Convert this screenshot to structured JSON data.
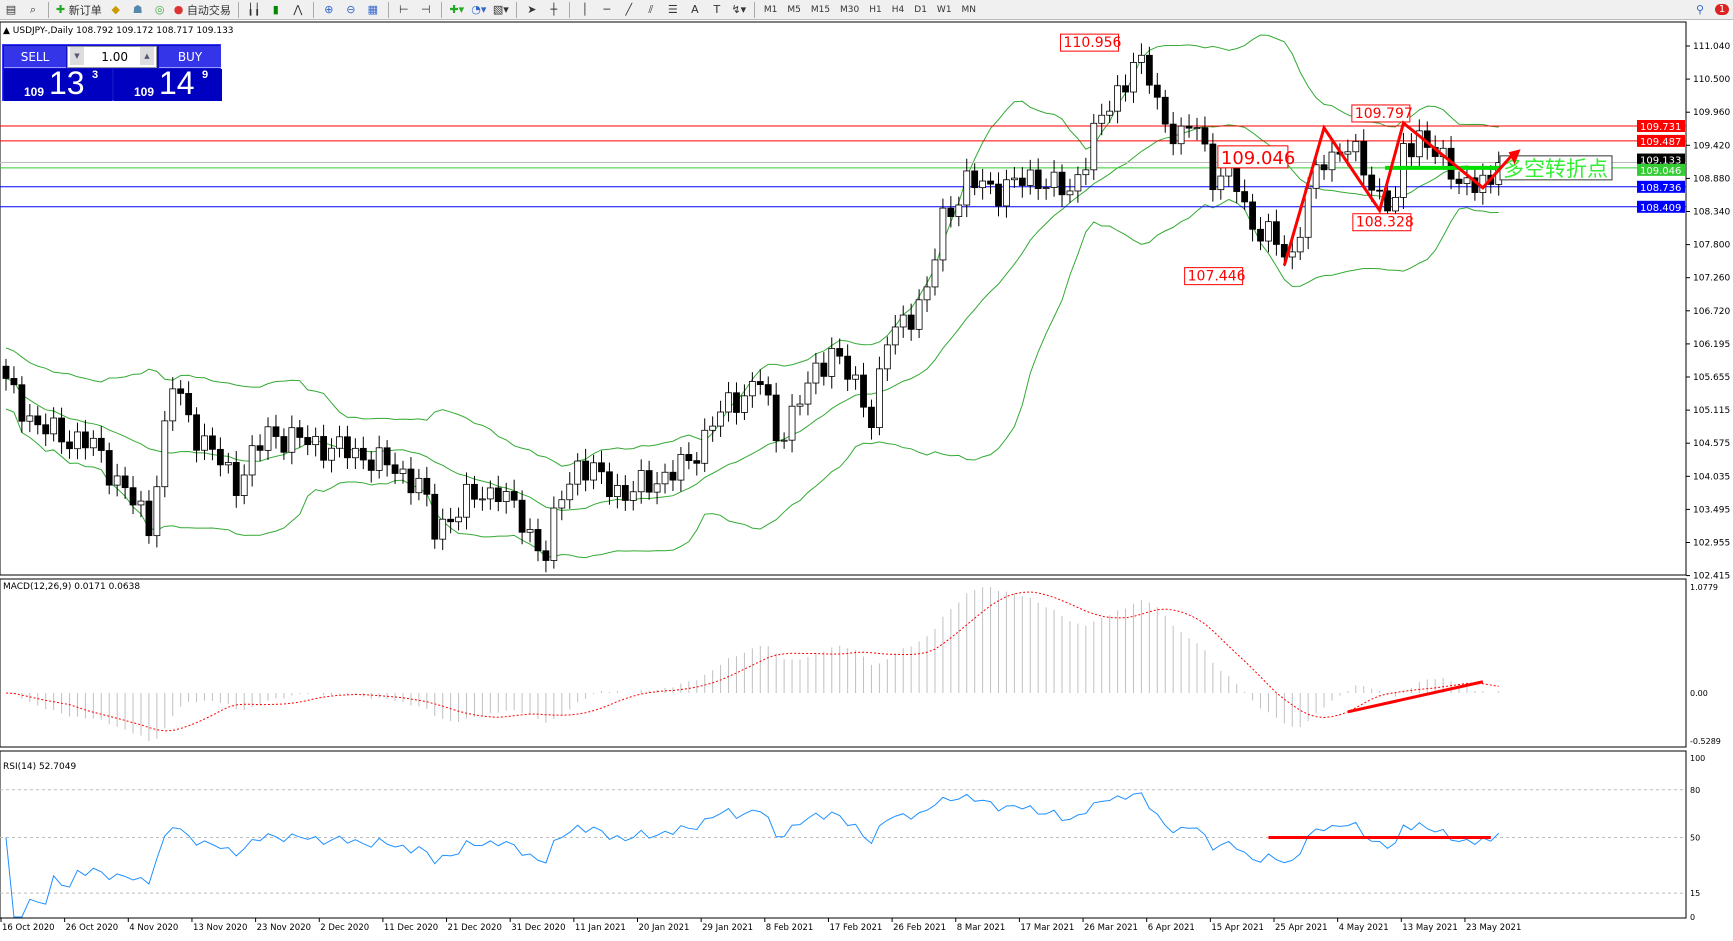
{
  "toolbar": {
    "new_order": "新订单",
    "auto_trading": "自动交易",
    "timeframes": [
      "M1",
      "M5",
      "M15",
      "M30",
      "H1",
      "H4",
      "D1",
      "W1",
      "MN"
    ],
    "notification_count": "1"
  },
  "chart": {
    "title": "USDJPY-,Daily  108.792 109.172 108.717 109.133",
    "symbol": "USDJPY-",
    "timeframe": "Daily",
    "ohlc": {
      "open": "108.792",
      "high": "109.172",
      "low": "108.717",
      "close": "109.133"
    }
  },
  "trade_panel": {
    "sell": "SELL",
    "buy": "BUY",
    "lot": "1.00",
    "bid": {
      "big": "109",
      "main": "13",
      "pip": "3"
    },
    "ask": {
      "big": "109",
      "main": "14",
      "pip": "9"
    }
  },
  "price_axis": [
    "111.040",
    "110.500",
    "109.960",
    "109.420",
    "108.880",
    "108.340",
    "107.800",
    "107.260",
    "106.720",
    "106.195",
    "105.655",
    "105.115",
    "104.575",
    "104.035",
    "103.495",
    "102.955",
    "102.415"
  ],
  "price_lines": [
    {
      "label": "109.731",
      "price": 109.731,
      "color": "#ff0000"
    },
    {
      "label": "109.487",
      "price": 109.487,
      "color": "#ff0000"
    },
    {
      "label": "109.133",
      "price": 109.133,
      "color": "#000000"
    },
    {
      "label": "109.046",
      "price": 109.046,
      "color": "#33cc33"
    },
    {
      "label": "108.736",
      "price": 108.736,
      "color": "#0000ff"
    },
    {
      "label": "108.409",
      "price": 108.409,
      "color": "#0000ff"
    }
  ],
  "annotations": [
    {
      "text": "110.956",
      "bar": 141,
      "price": 110.956
    },
    {
      "text": "109.797",
      "bar": 169,
      "price": 109.797
    },
    {
      "text": "109.046",
      "bar": 152,
      "price": 109.046
    },
    {
      "text": "108.328",
      "bar": 169,
      "price": 108.328
    },
    {
      "text": "107.446",
      "bar": 156,
      "price": 107.446
    }
  ],
  "turning_point_label": "多空转折点",
  "close_anchors": [
    [
      0,
      105.5
    ],
    [
      4,
      104.8
    ],
    [
      11,
      104.5
    ],
    [
      18,
      103.2
    ],
    [
      21,
      105.5
    ],
    [
      24,
      104.7
    ],
    [
      29,
      103.9
    ],
    [
      33,
      104.7
    ],
    [
      40,
      104.5
    ],
    [
      46,
      104.3
    ],
    [
      52,
      103.9
    ],
    [
      54,
      103.1
    ],
    [
      58,
      103.6
    ],
    [
      62,
      103.8
    ],
    [
      68,
      102.7
    ],
    [
      70,
      103.7
    ],
    [
      72,
      104.2
    ],
    [
      78,
      103.7
    ],
    [
      86,
      104.2
    ],
    [
      89,
      104.9
    ],
    [
      95,
      105.6
    ],
    [
      97,
      104.6
    ],
    [
      104,
      106.1
    ],
    [
      109,
      105.0
    ],
    [
      111,
      106.2
    ],
    [
      116,
      107.0
    ],
    [
      118,
      108.2
    ],
    [
      121,
      108.8
    ],
    [
      125,
      108.7
    ],
    [
      130,
      108.9
    ],
    [
      134,
      108.6
    ],
    [
      137,
      109.6
    ],
    [
      141,
      110.5
    ],
    [
      142,
      110.8
    ],
    [
      144,
      110.5
    ],
    [
      146,
      109.8
    ],
    [
      148,
      109.5
    ],
    [
      150,
      109.8
    ],
    [
      152,
      108.9
    ],
    [
      155,
      108.8
    ],
    [
      157,
      108.1
    ],
    [
      160,
      107.8
    ],
    [
      162,
      107.6
    ],
    [
      164,
      108.6
    ],
    [
      166,
      109.2
    ],
    [
      169,
      109.4
    ],
    [
      173,
      108.6
    ],
    [
      175,
      108.4
    ],
    [
      176,
      109.3
    ],
    [
      178,
      109.6
    ],
    [
      181,
      109.1
    ],
    [
      184,
      108.8
    ],
    [
      187,
      108.7
    ],
    [
      188,
      109.133
    ]
  ],
  "macd": {
    "label": "MACD(12,26,9) 0.0171 0.0638",
    "axis": [
      "1.0779",
      "0.00",
      "-0.5289"
    ]
  },
  "rsi": {
    "label": "RSI(14) 52.7049",
    "axis": [
      "100",
      "80",
      "50",
      "15",
      "0"
    ]
  },
  "date_axis": [
    "16 Oct 2020",
    "26 Oct 2020",
    "4 Nov 2020",
    "13 Nov 2020",
    "23 Nov 2020",
    "2 Dec 2020",
    "11 Dec 2020",
    "21 Dec 2020",
    "31 Dec 2020",
    "11 Jan 2021",
    "20 Jan 2021",
    "29 Jan 2021",
    "8 Feb 2021",
    "17 Feb 2021",
    "26 Feb 2021",
    "8 Mar 2021",
    "17 Mar 2021",
    "26 Mar 2021",
    "6 Apr 2021",
    "15 Apr 2021",
    "25 Apr 2021",
    "4 May 2021",
    "13 May 2021",
    "23 May 2021"
  ],
  "colors": {
    "bollinger": "#33aa33",
    "macd_signal": "#ff0000",
    "macd_hist": "#c0c0c0",
    "rsi": "#1e90ff",
    "arrows": "#ff0000",
    "trade_panel": "#1010c0"
  }
}
